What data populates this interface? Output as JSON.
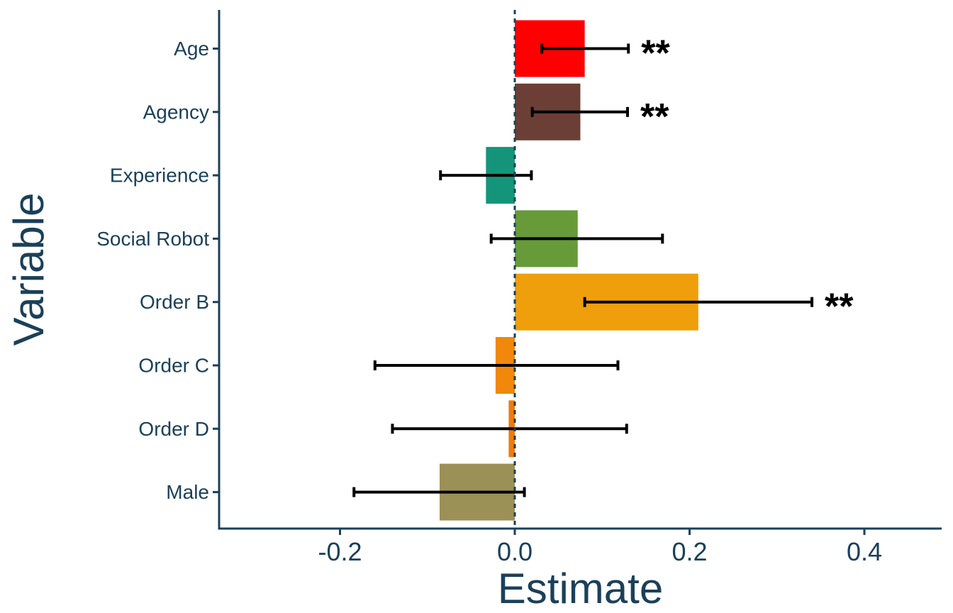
{
  "chart_data": {
    "type": "bar",
    "orientation": "horizontal",
    "xlabel": "Estimate",
    "ylabel": "Variable",
    "xlim": [
      -0.34,
      0.49
    ],
    "xticks": [
      -0.2,
      0.0,
      0.2,
      0.4
    ],
    "xtick_labels": [
      "-0.2",
      "0.0",
      "0.2",
      "0.4"
    ],
    "reference_line": 0.0,
    "grid": false,
    "legend": "none",
    "categories": [
      "Age",
      "Agency",
      "Experience",
      "Social Robot",
      "Order B",
      "Order C",
      "Order D",
      "Male"
    ],
    "values": [
      0.08,
      0.075,
      -0.033,
      0.072,
      0.21,
      -0.022,
      -0.007,
      -0.086
    ],
    "ci_low": [
      0.031,
      0.02,
      -0.085,
      -0.027,
      0.08,
      -0.16,
      -0.14,
      -0.184
    ],
    "ci_high": [
      0.13,
      0.129,
      0.019,
      0.169,
      0.34,
      0.118,
      0.128,
      0.011
    ],
    "significance": [
      "**",
      "**",
      "",
      "",
      "**",
      "",
      "",
      ""
    ],
    "colors": [
      "#ff0000",
      "#6b3f35",
      "#14957a",
      "#679a38",
      "#ee9f0b",
      "#f0880b",
      "#f07a0a",
      "#9b9055"
    ],
    "axis_color": "#1b4059"
  }
}
